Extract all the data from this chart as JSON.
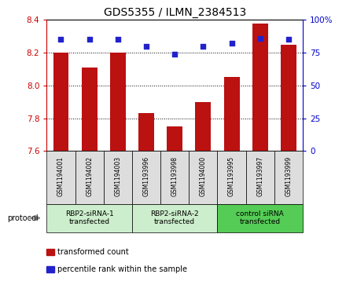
{
  "title": "GDS5355 / ILMN_2384513",
  "samples": [
    "GSM1194001",
    "GSM1194002",
    "GSM1194003",
    "GSM1193996",
    "GSM1193998",
    "GSM1194000",
    "GSM1193995",
    "GSM1193997",
    "GSM1193999"
  ],
  "bar_values": [
    8.2,
    8.11,
    8.2,
    7.83,
    7.75,
    7.9,
    8.05,
    8.38,
    8.25
  ],
  "dot_values": [
    85,
    85,
    85,
    80,
    74,
    80,
    82,
    86,
    85
  ],
  "ylim": [
    7.6,
    8.4
  ],
  "yticks": [
    7.6,
    7.8,
    8.0,
    8.2,
    8.4
  ],
  "right_yticks": [
    0,
    25,
    50,
    75,
    100
  ],
  "bar_color": "#BB1111",
  "dot_color": "#2222CC",
  "bar_bottom": 7.6,
  "groups": [
    {
      "label": "RBP2-siRNA-1\ntransfected",
      "start": 0,
      "end": 3,
      "color": "#CCEECC"
    },
    {
      "label": "RBP2-siRNA-2\ntransfected",
      "start": 3,
      "end": 6,
      "color": "#CCEECC"
    },
    {
      "label": "control siRNA\ntransfected",
      "start": 6,
      "end": 9,
      "color": "#55CC55"
    }
  ],
  "protocol_label": "protocol",
  "legend_items": [
    {
      "color": "#BB1111",
      "label": "transformed count"
    },
    {
      "color": "#2222CC",
      "label": "percentile rank within the sample"
    }
  ],
  "bg_color": "#FFFFFF",
  "ax_label_color_left": "#CC0000",
  "ax_label_color_right": "#0000CC",
  "sample_box_color": "#DDDDDD",
  "group1_color": "#CCEECC",
  "group2_color": "#55CC55"
}
